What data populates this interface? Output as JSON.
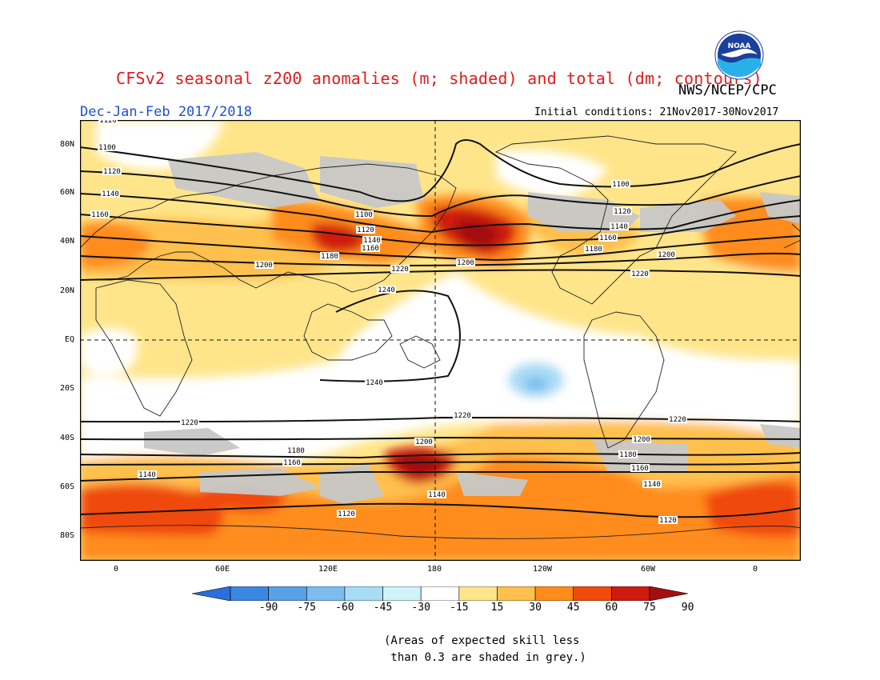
{
  "header": {
    "title": "CFSv2 seasonal z200 anomalies (m; shaded) and total (dm; contours)",
    "agency": "NWS/NCEP/CPC",
    "season": "Dec-Jan-Feb 2017/2018",
    "initial_conditions": "Initial conditions: 21Nov2017-30Nov2017",
    "logo_text": "NOAA"
  },
  "map": {
    "lat_labels": [
      "80N",
      "60N",
      "40N",
      "20N",
      "EQ",
      "20S",
      "40S",
      "60S",
      "80S"
    ],
    "lon_labels": [
      "0",
      "60E",
      "120E",
      "180",
      "120W",
      "60W",
      "0"
    ],
    "contours": [
      {
        "value": "1100",
        "labels": [
          "1100",
          "1100",
          "1100"
        ]
      },
      {
        "value": "1120",
        "labels": [
          "1120",
          "1120",
          "1120",
          "1120",
          "1120",
          "1120"
        ]
      },
      {
        "value": "1140",
        "labels": [
          "1140",
          "1140",
          "1140",
          "1140",
          "1140",
          "1140"
        ]
      },
      {
        "value": "1160",
        "labels": [
          "1160",
          "1160",
          "1160",
          "1160",
          "1160"
        ]
      },
      {
        "value": "1180",
        "labels": [
          "1180",
          "1180",
          "1180",
          "1180"
        ]
      },
      {
        "value": "1200",
        "labels": [
          "1200",
          "1200",
          "1200",
          "1200",
          "1200",
          "1200"
        ]
      },
      {
        "value": "1220",
        "labels": [
          "1220",
          "1220",
          "1220",
          "1220",
          "1220"
        ]
      },
      {
        "value": "1240",
        "labels": [
          "1240",
          "1240"
        ]
      }
    ]
  },
  "colorbar": {
    "labels": [
      "-90",
      "-75",
      "-60",
      "-45",
      "-30",
      "-15",
      "15",
      "30",
      "45",
      "60",
      "75",
      "90"
    ],
    "colors": [
      "#2a6fdb",
      "#3c87e0",
      "#5aa0e6",
      "#7cbcee",
      "#a7dcf5",
      "#cff3f8",
      "#ffffff",
      "#ffe58a",
      "#ffc04d",
      "#ff8c1a",
      "#f04a0c",
      "#cf1b0e",
      "#a30f10"
    ],
    "skill_grey": "#c8c8c8"
  },
  "footnote": {
    "line1": "(Areas of expected skill less",
    "line2": " than 0.3 are shaded in grey.)"
  }
}
